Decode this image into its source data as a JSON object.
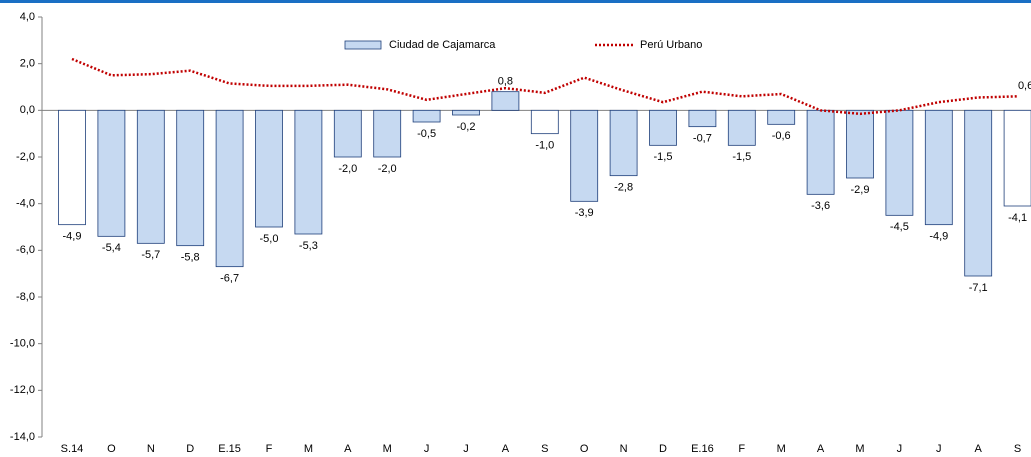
{
  "chart_data": {
    "type": "bar",
    "categories": [
      "S.14",
      "O",
      "N",
      "D",
      "E.15",
      "F",
      "M",
      "A",
      "M",
      "J",
      "J",
      "A",
      "S",
      "O",
      "N",
      "D",
      "E.16",
      "F",
      "M",
      "A",
      "M",
      "J",
      "J",
      "A",
      "S"
    ],
    "series": [
      {
        "name": "Ciudad de Cajamarca",
        "type": "bar",
        "color": "#c6d9f1",
        "colors": [
          "#ffffff",
          "#c6d9f1",
          "#c6d9f1",
          "#c6d9f1",
          "#c6d9f1",
          "#c6d9f1",
          "#c6d9f1",
          "#c6d9f1",
          "#c6d9f1",
          "#c6d9f1",
          "#c6d9f1",
          "#c6d9f1",
          "#ffffff",
          "#c6d9f1",
          "#c6d9f1",
          "#c6d9f1",
          "#c6d9f1",
          "#c6d9f1",
          "#c6d9f1",
          "#c6d9f1",
          "#c6d9f1",
          "#c6d9f1",
          "#c6d9f1",
          "#c6d9f1",
          "#ffffff"
        ],
        "values": [
          -4.9,
          -5.4,
          -5.7,
          -5.8,
          -6.7,
          -5.0,
          -5.3,
          -2.0,
          -2.0,
          -0.5,
          -0.2,
          0.8,
          -1.0,
          -3.9,
          -2.8,
          -1.5,
          -0.7,
          -1.5,
          -0.6,
          -3.6,
          -2.9,
          -4.5,
          -4.9,
          -7.1,
          -4.1
        ],
        "value_labels": [
          "-4,9",
          "-5,4",
          "-5,7",
          "-5,8",
          "-6,7",
          "-5,0",
          "-5,3",
          "-2,0",
          "-2,0",
          "-0,5",
          "-0,2",
          "0,8",
          "-1,0",
          "-3,9",
          "-2,8",
          "-1,5",
          "-0,7",
          "-1,5",
          "-0,6",
          "-3,6",
          "-2,9",
          "-4,5",
          "-4,9",
          "-7,1",
          "-4,1"
        ]
      },
      {
        "name": "Perú Urbano",
        "type": "line",
        "color": "#c00000",
        "values": [
          2.2,
          1.5,
          1.55,
          1.7,
          1.15,
          1.05,
          1.05,
          1.1,
          0.9,
          0.45,
          0.7,
          0.95,
          0.75,
          1.4,
          0.85,
          0.35,
          0.8,
          0.6,
          0.7,
          0.0,
          -0.15,
          0.0,
          0.35,
          0.55,
          0.6
        ],
        "value_labels": [
          null,
          null,
          null,
          null,
          null,
          null,
          null,
          null,
          null,
          null,
          null,
          null,
          null,
          null,
          null,
          null,
          null,
          null,
          null,
          null,
          null,
          null,
          null,
          null,
          "0,6"
        ]
      }
    ],
    "ylim": [
      -14,
      4
    ],
    "yticks": [
      {
        "value": -14,
        "label": "-14,0"
      },
      {
        "value": -12,
        "label": "-12,0"
      },
      {
        "value": -10,
        "label": "-10,0"
      },
      {
        "value": -8,
        "label": "-8,0"
      },
      {
        "value": -6,
        "label": "-6,0"
      },
      {
        "value": -4,
        "label": "-4,0"
      },
      {
        "value": -2,
        "label": "-2,0"
      },
      {
        "value": 0,
        "label": "0,0"
      },
      {
        "value": 2,
        "label": "2,0"
      },
      {
        "value": 4,
        "label": "4,0"
      }
    ],
    "grid": false
  }
}
